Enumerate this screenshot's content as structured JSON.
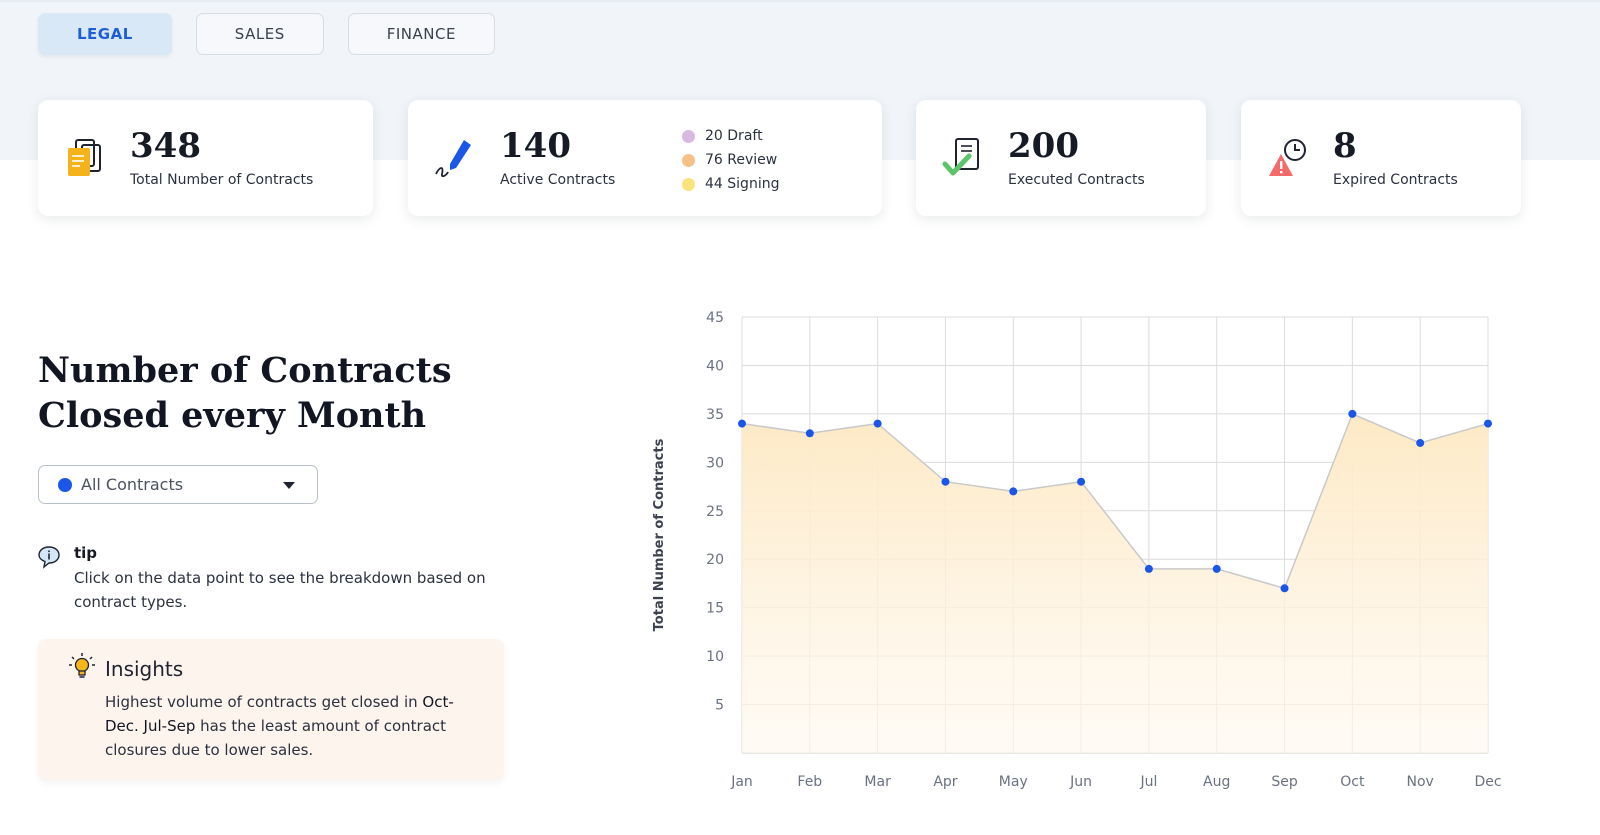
{
  "tabs": [
    {
      "label": "LEGAL",
      "active": true
    },
    {
      "label": "SALES",
      "active": false
    },
    {
      "label": "FINANCE",
      "active": false
    }
  ],
  "cards": {
    "total": {
      "value": "348",
      "label": "Total Number of Contracts",
      "icon": "documents-icon"
    },
    "active": {
      "value": "140",
      "label": "Active Contracts",
      "icon": "pen-signature-icon",
      "breakdown": [
        {
          "count": "20",
          "label": "Draft",
          "color": "#d8b9e0"
        },
        {
          "count": "76",
          "label": "Review",
          "color": "#f7c08a"
        },
        {
          "count": "44",
          "label": "Signing",
          "color": "#fbe27a"
        }
      ]
    },
    "executed": {
      "value": "200",
      "label": "Executed Contracts",
      "icon": "document-check-icon"
    },
    "expired": {
      "value": "8",
      "label": "Expired Contracts",
      "icon": "warning-clock-icon"
    }
  },
  "heading": {
    "line1": "Number of Contracts",
    "line2": "Closed every Month"
  },
  "filter": {
    "selected": "All Contracts",
    "dot_color": "#1a56e8"
  },
  "tip": {
    "title": "tip",
    "text": "Click on the data point to see the breakdown based on contract types."
  },
  "insights": {
    "title": "Insights",
    "text_1": "Highest volume of contracts get closed in ",
    "highlight_1": "Oct-Dec. Jul-Sep",
    "text_2": " has the least amount of contract closures due to lower sales."
  },
  "colors": {
    "accent": "#1a56e8",
    "area_top": "#fde9c4",
    "line": "#c9c9c9"
  },
  "chart_data": {
    "type": "area",
    "categories": [
      "Jan",
      "Feb",
      "Mar",
      "Apr",
      "May",
      "Jun",
      "Jul",
      "Aug",
      "Sep",
      "Oct",
      "Nov",
      "Dec"
    ],
    "values": [
      34,
      33,
      34,
      28,
      27,
      28,
      19,
      19,
      17,
      35,
      32,
      34
    ],
    "ylabel": "Total Number of Contracts",
    "xlabel": "",
    "ylim": [
      0,
      45
    ],
    "yticks": [
      5,
      10,
      15,
      20,
      25,
      30,
      35,
      40,
      45
    ],
    "grid": true
  }
}
